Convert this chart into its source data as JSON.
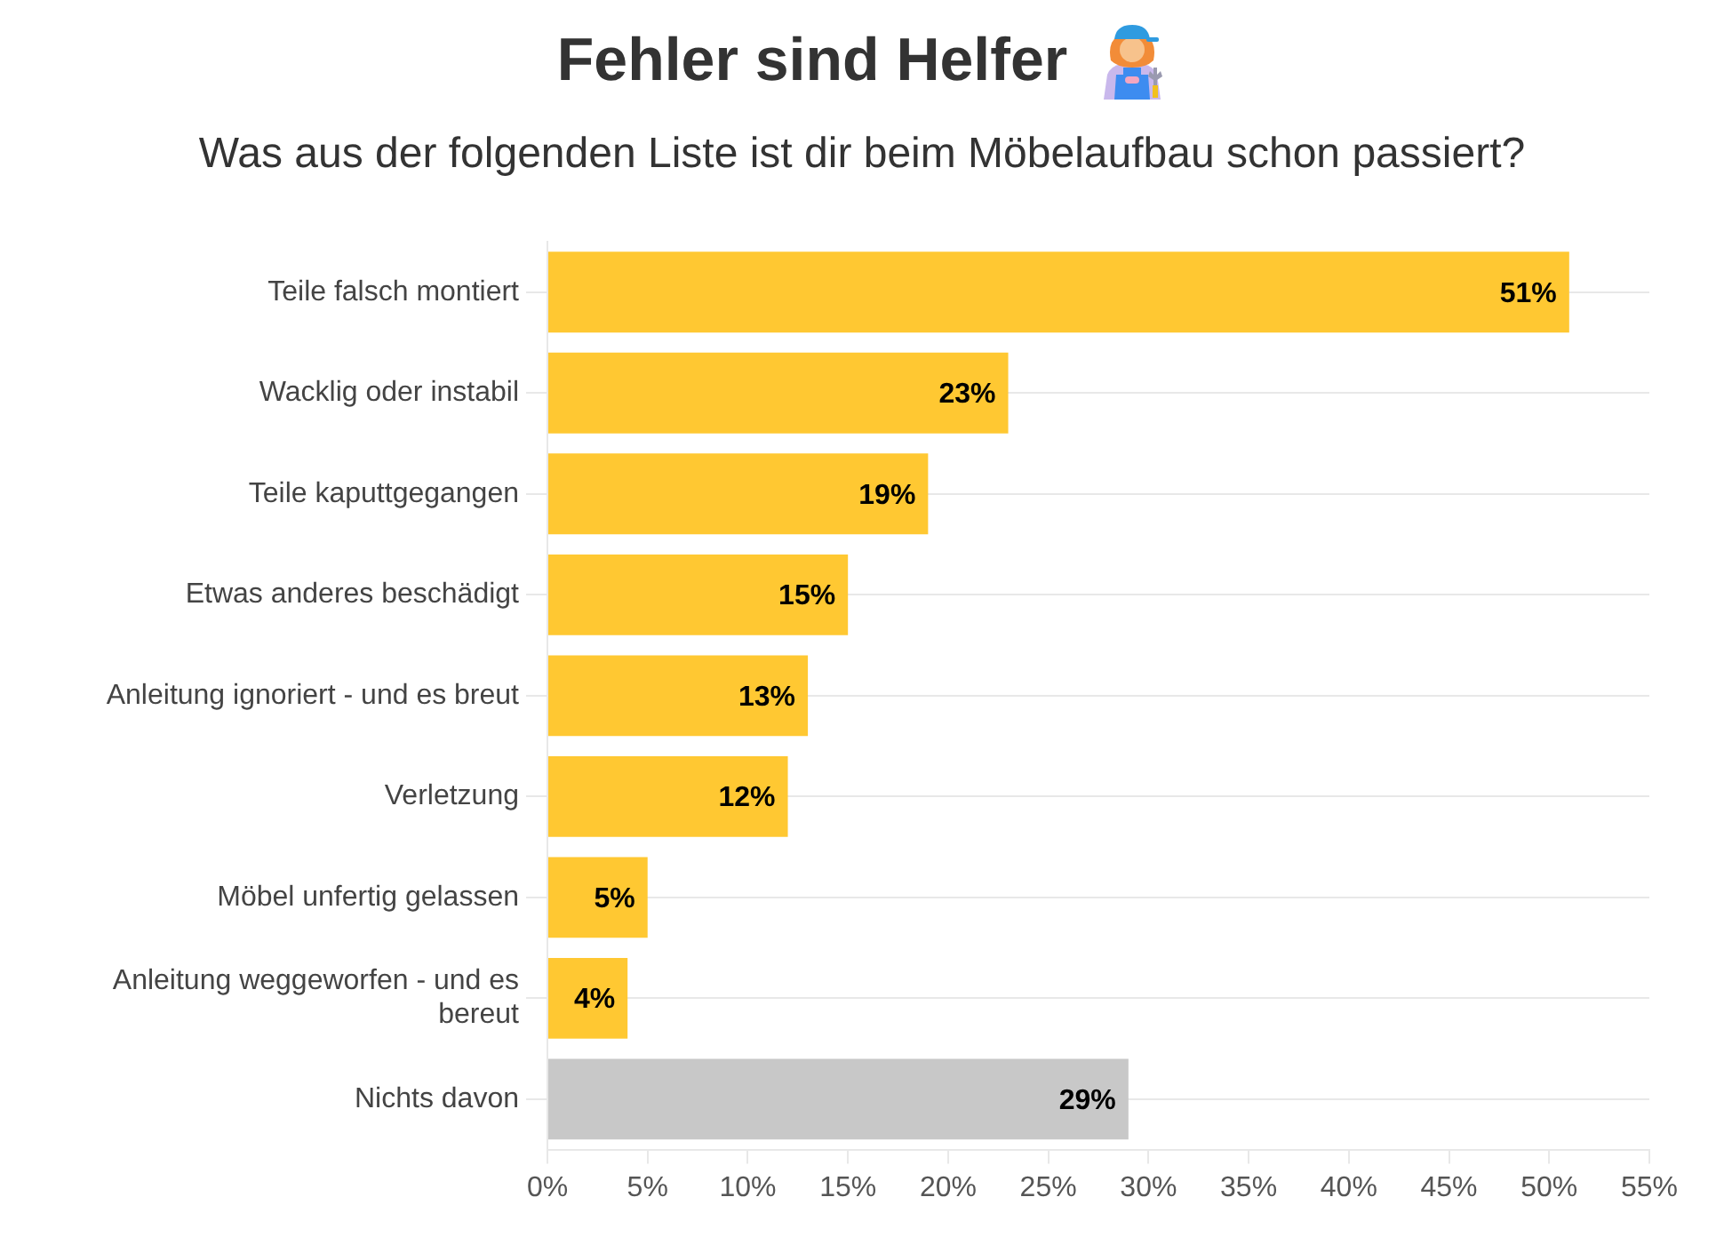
{
  "chart_data": {
    "type": "bar",
    "orientation": "horizontal",
    "title": "Fehler sind Helfer",
    "subtitle": "Was aus der folgenden Liste ist dir beim Möbelaufbau schon passiert?",
    "categories": [
      "Teile falsch montiert",
      "Wacklig oder instabil",
      "Teile kaputtgegangen",
      "Etwas anderes beschädigt",
      "Anleitung ignoriert - und es breut",
      "Verletzung",
      "Möbel unfertig gelassen",
      "Anleitung weggeworfen - und es bereut",
      "Nichts davon"
    ],
    "values": [
      51,
      23,
      19,
      15,
      13,
      12,
      5,
      4,
      29
    ],
    "value_labels": [
      "51%",
      "23%",
      "19%",
      "15%",
      "13%",
      "12%",
      "5%",
      "4%",
      "29%"
    ],
    "colors": [
      "#ffc832",
      "#ffc832",
      "#ffc832",
      "#ffc832",
      "#ffc832",
      "#ffc832",
      "#ffc832",
      "#ffc832",
      "#c8c8c8"
    ],
    "xlim": [
      0,
      55
    ],
    "xticks": [
      {
        "value": 0,
        "label": "0%"
      },
      {
        "value": 5,
        "label": "5%"
      },
      {
        "value": 10,
        "label": "10%"
      },
      {
        "value": 15,
        "label": "15%"
      },
      {
        "value": 20,
        "label": "20%"
      },
      {
        "value": 25,
        "label": "25%"
      },
      {
        "value": 30,
        "label": "30%"
      },
      {
        "value": 35,
        "label": "35%"
      },
      {
        "value": 40,
        "label": "40%"
      },
      {
        "value": 45,
        "label": "45%"
      },
      {
        "value": 50,
        "label": "50%"
      },
      {
        "value": 55,
        "label": "55%"
      }
    ],
    "grid": "y"
  }
}
